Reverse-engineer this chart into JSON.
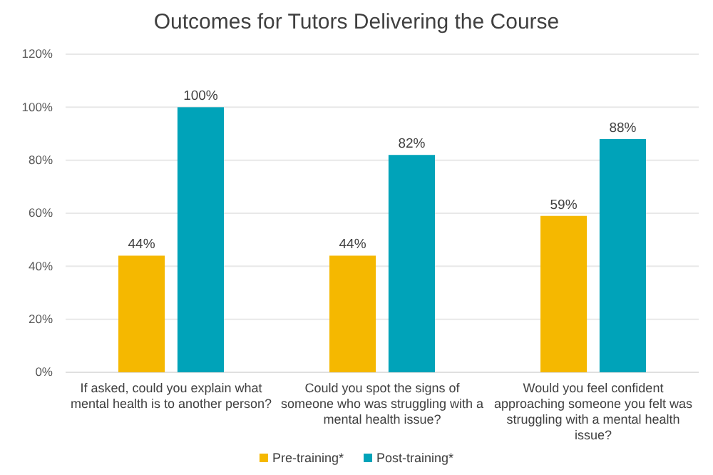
{
  "chart_data": {
    "type": "bar",
    "title": "Outcomes for Tutors Delivering the Course",
    "categories": [
      "If asked, could you explain what mental health is to another person?",
      "Could you spot the signs of someone who was struggling with a mental health issue?",
      "Would you feel confident approaching someone you felt was struggling with a mental health issue?"
    ],
    "series": [
      {
        "name": "Pre-training*",
        "color": "#f5b800",
        "values": [
          44,
          44,
          59
        ],
        "value_labels": [
          "44%",
          "44%",
          "59%"
        ]
      },
      {
        "name": "Post-training*",
        "color": "#00a3b9",
        "values": [
          100,
          82,
          88
        ],
        "value_labels": [
          "100%",
          "82%",
          "88%"
        ]
      }
    ],
    "ylim": [
      0,
      120
    ],
    "yticks": [
      {
        "value": 0,
        "label": "0%"
      },
      {
        "value": 20,
        "label": "20%"
      },
      {
        "value": 40,
        "label": "40%"
      },
      {
        "value": 60,
        "label": "60%"
      },
      {
        "value": 80,
        "label": "80%"
      },
      {
        "value": 100,
        "label": "100%"
      },
      {
        "value": 120,
        "label": "120%"
      }
    ],
    "grid": "y",
    "legend": "bottom"
  }
}
